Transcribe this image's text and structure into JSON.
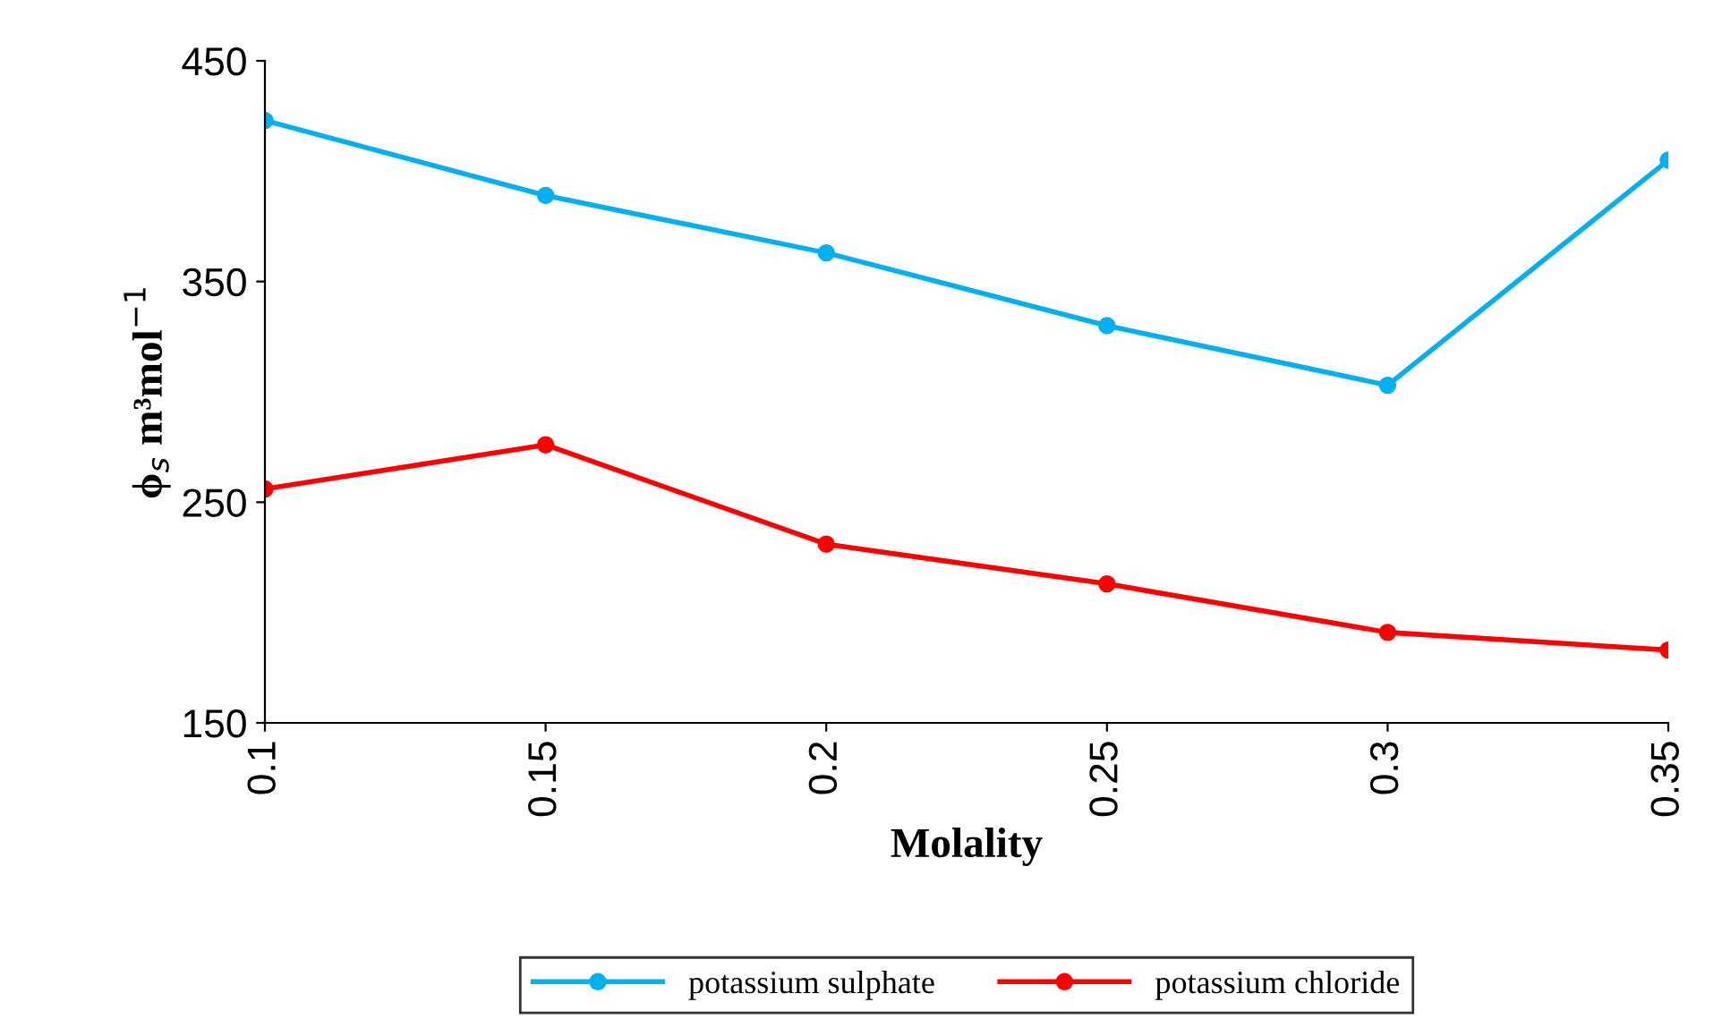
{
  "chart_data": {
    "type": "line",
    "xlabel": "Molality",
    "ylabel": "ϕ$_{s}$ m³mol$^{−1}$",
    "categories": [
      "0.1",
      "0.15",
      "0.2",
      "0.25",
      "0.3",
      "0.35"
    ],
    "series": [
      {
        "name": "potassium sulphate",
        "color": "#00b0f0",
        "values": [
          423,
          389,
          363,
          330,
          303,
          405
        ]
      },
      {
        "name": "potassium chloride",
        "color": "#ff0000",
        "values": [
          256,
          276,
          231,
          213,
          191,
          183
        ]
      }
    ],
    "ylim": [
      150,
      450
    ],
    "yticks": [
      150,
      250,
      350,
      450
    ],
    "grid": false,
    "legend": "bottom",
    "marker": "circle",
    "line_style": "solid"
  }
}
